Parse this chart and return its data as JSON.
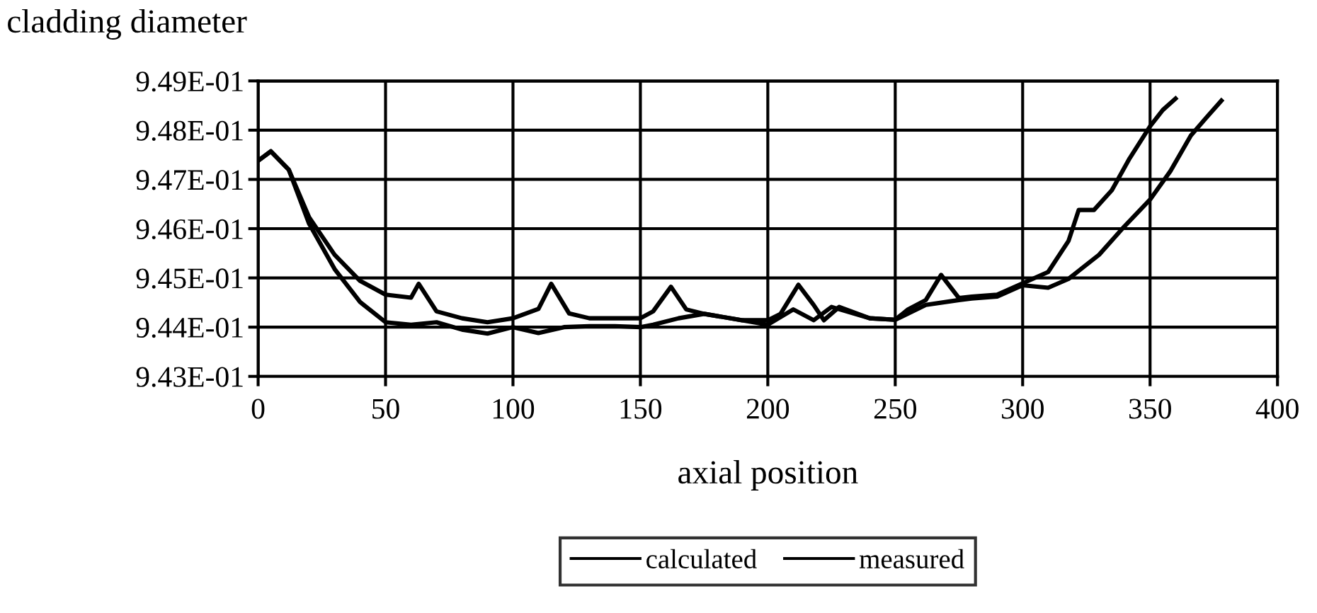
{
  "chart_data": {
    "type": "line",
    "xlabel": "axial position",
    "ylabel": "cladding diameter",
    "xlim": [
      0,
      400
    ],
    "xticks": [
      0,
      50,
      100,
      150,
      200,
      250,
      300,
      350,
      400
    ],
    "ylim": [
      0.943,
      0.949
    ],
    "yticks": [
      {
        "value": 0.943,
        "label": "9.43E-01"
      },
      {
        "value": 0.944,
        "label": "9.44E-01"
      },
      {
        "value": 0.945,
        "label": "9.45E-01"
      },
      {
        "value": 0.946,
        "label": "9.46E-01"
      },
      {
        "value": 0.947,
        "label": "9.47E-01"
      },
      {
        "value": 0.948,
        "label": "9.48E-01"
      },
      {
        "value": 0.949,
        "label": "9.49E-01"
      }
    ],
    "grid": true,
    "legend": "bottom",
    "line_style": "solid",
    "marker": "none",
    "series": [
      {
        "name": "calculated",
        "color": "#000000",
        "x": [
          0,
          5,
          12,
          20,
          30,
          40,
          50,
          60,
          63,
          70,
          80,
          90,
          100,
          110,
          115,
          122,
          130,
          140,
          150,
          155,
          162,
          168,
          175,
          190,
          200,
          205,
          212,
          218,
          222,
          228,
          240,
          250,
          255,
          262,
          268,
          275,
          280,
          290,
          300,
          310,
          318,
          322,
          328,
          335,
          342,
          350,
          355,
          360
        ],
        "values": [
          0.94738,
          0.94757,
          0.9472,
          0.94623,
          0.94547,
          0.94494,
          0.94466,
          0.9446,
          0.94488,
          0.94432,
          0.94418,
          0.9441,
          0.94418,
          0.94437,
          0.94488,
          0.94428,
          0.94418,
          0.94418,
          0.94418,
          0.94432,
          0.94482,
          0.94436,
          0.94427,
          0.94414,
          0.94414,
          0.94427,
          0.94486,
          0.94445,
          0.94414,
          0.94441,
          0.94418,
          0.94415,
          0.94436,
          0.94455,
          0.94506,
          0.94459,
          0.94462,
          0.94466,
          0.94489,
          0.94512,
          0.94575,
          0.94638,
          0.94638,
          0.94678,
          0.94743,
          0.94808,
          0.94841,
          0.94864
        ]
      },
      {
        "name": "measured",
        "color": "#000000",
        "x": [
          0,
          5,
          12,
          20,
          30,
          40,
          50,
          60,
          70,
          80,
          90,
          100,
          110,
          120,
          130,
          140,
          150,
          155,
          165,
          175,
          190,
          200,
          210,
          218,
          225,
          240,
          250,
          262,
          275,
          280,
          290,
          300,
          310,
          318,
          330,
          340,
          350,
          358,
          366,
          372,
          378
        ],
        "values": [
          0.94738,
          0.94757,
          0.9472,
          0.9461,
          0.94518,
          0.94451,
          0.9441,
          0.94405,
          0.9441,
          0.94395,
          0.94387,
          0.944,
          0.94388,
          0.944,
          0.94402,
          0.94402,
          0.944,
          0.94405,
          0.94418,
          0.94427,
          0.94414,
          0.94405,
          0.94436,
          0.94414,
          0.94441,
          0.94418,
          0.94415,
          0.94445,
          0.94455,
          0.94458,
          0.94462,
          0.94485,
          0.9448,
          0.94498,
          0.94547,
          0.94605,
          0.94659,
          0.94717,
          0.94789,
          0.94825,
          0.9486
        ]
      }
    ]
  }
}
